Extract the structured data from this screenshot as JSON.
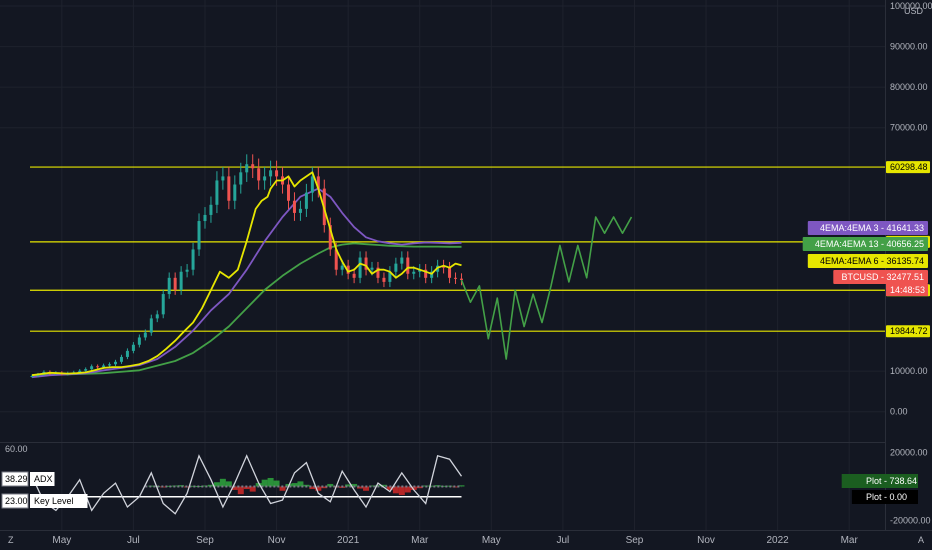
{
  "chart_data": {
    "type": "line",
    "symbol": "BTCUSD",
    "currency_label": "USD",
    "main_pane": {
      "ylim": [
        -5000,
        100000
      ],
      "y_ticks": [
        {
          "value": 100000,
          "label": "100000.00"
        },
        {
          "value": 90000,
          "label": "90000.00"
        },
        {
          "value": 80000,
          "label": "80000.00"
        },
        {
          "value": 70000,
          "label": "70000.00"
        },
        {
          "value": 10000,
          "label": "10000.00"
        },
        {
          "value": 0,
          "label": "0.00"
        }
      ],
      "horizontal_levels": [
        {
          "value": 60298.48,
          "label": "60298.48",
          "color": "#e6e600"
        },
        {
          "value": 41860.63,
          "label": "41860.63",
          "color": "#e6e600"
        },
        {
          "value": 29946.99,
          "label": "29946.99",
          "color": "#e6e600"
        },
        {
          "value": 19844.72,
          "label": "19844.72",
          "color": "#e6e600"
        }
      ],
      "price_tags": [
        {
          "name": "4EMA:4EMA 3",
          "value": 41641.33,
          "label": "41641.33",
          "color": "#7e57c2"
        },
        {
          "name": "4EMA:4EMA 13",
          "value": 40656.25,
          "label": "40656.25",
          "color": "#43a047"
        },
        {
          "name": "4EMA:4EMA 6",
          "value": 36135.74,
          "label": "36135.74",
          "color": "#e6e600"
        },
        {
          "name": "BTCUSD",
          "value": 32477.51,
          "label": "32477.51",
          "countdown": "14:48:53",
          "color": "#ef5350"
        }
      ],
      "series": [
        {
          "key": "ema6",
          "color": "#e6e600",
          "x": [
            0,
            3,
            6,
            9,
            12,
            15,
            18,
            21,
            24,
            27,
            30,
            33,
            36,
            39,
            42,
            45,
            48,
            51,
            54,
            57,
            60,
            63,
            66,
            69,
            72,
            75,
            77,
            79,
            80,
            82,
            84,
            86,
            88,
            90,
            92,
            94,
            96,
            98,
            100,
            102,
            104,
            106,
            108,
            110,
            112,
            114,
            116,
            118,
            120,
            122,
            124,
            126,
            128,
            130,
            132,
            134,
            136,
            138,
            140,
            142,
            144
          ],
          "y": [
            9000,
            9300,
            9600,
            9500,
            9400,
            9500,
            9700,
            10200,
            10800,
            11000,
            11000,
            11300,
            11700,
            12500,
            13700,
            15500,
            17500,
            19800,
            22000,
            25500,
            30000,
            34500,
            33000,
            35000,
            42000,
            50000,
            52000,
            53000,
            55000,
            57000,
            57000,
            58000,
            55500,
            57000,
            58000,
            59000,
            55000,
            50000,
            45000,
            40000,
            37000,
            34500,
            35000,
            36500,
            36000,
            34000,
            35000,
            35000,
            34500,
            33000,
            34000,
            35500,
            35500,
            35000,
            34500,
            34000,
            35500,
            36000,
            35500,
            36500,
            36100
          ]
        },
        {
          "key": "ema3",
          "color": "#7e57c2",
          "x": [
            0,
            6,
            12,
            18,
            24,
            30,
            36,
            42,
            48,
            54,
            60,
            66,
            72,
            78,
            84,
            90,
            96,
            100,
            104,
            108,
            112,
            116,
            120,
            124,
            128,
            132,
            136,
            140,
            144
          ],
          "y": [
            8500,
            9000,
            9200,
            9500,
            10200,
            10800,
            11500,
            13000,
            16000,
            20000,
            25000,
            29000,
            35000,
            42000,
            48000,
            53000,
            55000,
            53000,
            49000,
            45500,
            43000,
            42000,
            41500,
            41200,
            41500,
            41700,
            41600,
            41500,
            41641
          ]
        },
        {
          "key": "ema13",
          "color": "#43a047",
          "x": [
            0,
            12,
            24,
            36,
            48,
            54,
            60,
            66,
            72,
            78,
            84,
            90,
            96,
            100,
            104,
            108,
            112,
            116,
            120,
            124,
            128,
            132,
            136,
            140,
            144
          ],
          "y": [
            9000,
            9200,
            9500,
            10200,
            12500,
            14500,
            17500,
            21000,
            25500,
            30000,
            33500,
            36500,
            39000,
            40500,
            41200,
            41500,
            41300,
            41100,
            40900,
            40800,
            40700,
            40700,
            40700,
            40656,
            40656
          ]
        },
        {
          "key": "price",
          "color": "#ef5350",
          "style": "candles-proxy",
          "x": [
            0,
            2,
            4,
            6,
            8,
            10,
            12,
            14,
            16,
            18,
            20,
            22,
            24,
            26,
            28,
            30,
            32,
            34,
            36,
            38,
            40,
            42,
            44,
            46,
            48,
            50,
            52,
            54,
            56,
            58,
            60,
            62,
            64,
            66,
            68,
            70,
            72,
            74,
            76,
            78,
            80,
            82,
            84,
            86,
            88,
            90,
            92,
            94,
            96,
            98,
            100,
            102,
            104,
            106,
            108,
            110,
            112,
            114,
            116,
            118,
            120,
            122,
            124,
            126,
            128,
            130,
            132,
            134,
            136,
            138,
            140,
            142,
            144
          ],
          "y": [
            8800,
            9200,
            9800,
            9400,
            9600,
            9300,
            9500,
            9700,
            10100,
            10500,
            11200,
            11000,
            11400,
            11700,
            12300,
            13500,
            15000,
            16500,
            18300,
            19500,
            23000,
            24000,
            29000,
            33000,
            30000,
            34500,
            35000,
            40000,
            47000,
            48500,
            51000,
            57000,
            58000,
            52000,
            56000,
            59000,
            61000,
            60000,
            57000,
            58000,
            59500,
            58000,
            56000,
            52000,
            49000,
            50000,
            54000,
            58000,
            55000,
            46000,
            40000,
            35000,
            36000,
            34000,
            33000,
            38000,
            35000,
            35500,
            33000,
            32000,
            34500,
            36500,
            38000,
            34000,
            34500,
            35000,
            33000,
            34500,
            36000,
            35500,
            33000,
            32800,
            32477
          ]
        },
        {
          "key": "projection",
          "color": "#43a047",
          "x": [
            144,
            147,
            150,
            153,
            156,
            159,
            162,
            165,
            168,
            171,
            174,
            177,
            180,
            183,
            186,
            189,
            192,
            195,
            198,
            201
          ],
          "y": [
            32477,
            27000,
            31000,
            18000,
            28000,
            13000,
            30000,
            21000,
            29000,
            22000,
            31000,
            41000,
            32000,
            41000,
            33000,
            48000,
            44000,
            48000,
            44000,
            48000
          ]
        }
      ]
    },
    "indicator_pane": {
      "left_max_label": "60.00",
      "right_ticks": [
        {
          "value": 20000,
          "label": "20000.00"
        },
        {
          "value": -20000,
          "label": "-20000.00"
        }
      ],
      "ylim": [
        -22000,
        22000
      ],
      "legend": [
        {
          "value_label": "38.29",
          "name": "ADX"
        },
        {
          "value_label": "23.00",
          "name": "Key Level"
        }
      ],
      "tags": [
        {
          "name": "Plot",
          "label": "738.64",
          "color": "#1b5e20"
        },
        {
          "name": "Plot",
          "label": "0.00",
          "color": "#000000"
        }
      ],
      "adx_line": {
        "x": [
          0,
          4,
          8,
          12,
          16,
          20,
          24,
          28,
          32,
          36,
          40,
          44,
          48,
          52,
          56,
          60,
          64,
          68,
          72,
          76,
          80,
          84,
          88,
          92,
          96,
          100,
          104,
          108,
          112,
          116,
          120,
          124,
          128,
          132,
          136,
          140,
          144
        ],
        "y": [
          6000,
          -9000,
          -14000,
          -6000,
          4000,
          -14000,
          -4000,
          2000,
          -12000,
          -6000,
          8000,
          -10000,
          -16000,
          -4000,
          18000,
          4000,
          -12000,
          2000,
          18000,
          2000,
          -10000,
          -8000,
          8000,
          14000,
          -4000,
          -9000,
          9000,
          -2000,
          -12000,
          2000,
          -3000,
          8000,
          -2000,
          -10000,
          18000,
          16000,
          6000
        ]
      },
      "key_level": -6000,
      "histogram": {
        "x": [
          40,
          42,
          44,
          46,
          48,
          50,
          52,
          54,
          56,
          58,
          60,
          62,
          64,
          66,
          68,
          70,
          72,
          74,
          76,
          78,
          80,
          82,
          84,
          86,
          88,
          90,
          92,
          94,
          96,
          98,
          100,
          102,
          104,
          106,
          108,
          110,
          112,
          114,
          116,
          118,
          120,
          122,
          124,
          126,
          128,
          130,
          132,
          134,
          136,
          138,
          140,
          142,
          144
        ],
        "y": [
          500,
          300,
          -400,
          400,
          600,
          800,
          -300,
          400,
          300,
          600,
          1000,
          2500,
          4500,
          3000,
          -2000,
          -4500,
          -1500,
          -3000,
          2000,
          4000,
          5000,
          3500,
          -2500,
          1500,
          2000,
          3000,
          1000,
          -1500,
          -2500,
          -1000,
          1500,
          -600,
          -800,
          1200,
          1500,
          -1200,
          -2500,
          600,
          800,
          1000,
          -2000,
          -4000,
          -5000,
          -3500,
          -2000,
          -1000,
          600,
          500,
          800,
          400,
          500,
          -300,
          700
        ]
      }
    },
    "x_axis": {
      "ticks": [
        {
          "x": 10,
          "label": "May"
        },
        {
          "x": 34,
          "label": "Jul"
        },
        {
          "x": 58,
          "label": "Sep"
        },
        {
          "x": 82,
          "label": "Nov"
        },
        {
          "x": 106,
          "label": "2021"
        },
        {
          "x": 130,
          "label": "Mar"
        },
        {
          "x": 154,
          "label": "May"
        },
        {
          "x": 178,
          "label": "Jul"
        },
        {
          "x": 202,
          "label": "Sep"
        },
        {
          "x": 226,
          "label": "Nov"
        },
        {
          "x": 250,
          "label": "2022"
        },
        {
          "x": 274,
          "label": "Mar"
        }
      ],
      "xlim": [
        0,
        286
      ]
    },
    "corner_labels": {
      "left": "Z",
      "right": "A"
    }
  }
}
